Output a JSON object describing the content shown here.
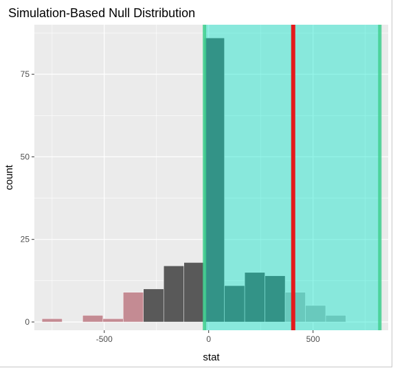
{
  "chart_data": {
    "type": "bar",
    "title": "Simulation-Based Null Distribution",
    "xlabel": "stat",
    "ylabel": "count",
    "xlim": [
      -835,
      860
    ],
    "ylim": [
      -2.5,
      90
    ],
    "x_ticks": [
      -500,
      0,
      500
    ],
    "x_tick_labels": [
      "-500",
      "0",
      "500"
    ],
    "y_ticks": [
      0,
      25,
      50,
      75
    ],
    "y_tick_labels": [
      "0",
      "25",
      "50",
      "75"
    ],
    "grid": true,
    "legend": "none",
    "bin_width": 97,
    "bins": [
      {
        "x": -750,
        "count": 1,
        "region": "extreme"
      },
      {
        "x": -555,
        "count": 2,
        "region": "extreme"
      },
      {
        "x": -458,
        "count": 1,
        "region": "extreme"
      },
      {
        "x": -361,
        "count": 9,
        "region": "extreme"
      },
      {
        "x": -264,
        "count": 10,
        "region": "null"
      },
      {
        "x": -167,
        "count": 17,
        "region": "null"
      },
      {
        "x": -70,
        "count": 18,
        "region": "null"
      },
      {
        "x": 27,
        "count": 86,
        "region": "null"
      },
      {
        "x": 124,
        "count": 11,
        "region": "null"
      },
      {
        "x": 221,
        "count": 15,
        "region": "null"
      },
      {
        "x": 318,
        "count": 14,
        "region": "null"
      },
      {
        "x": 415,
        "count": 9,
        "region": "extreme"
      },
      {
        "x": 512,
        "count": 5,
        "region": "extreme"
      },
      {
        "x": 609,
        "count": 2,
        "region": "extreme"
      }
    ],
    "shaded_region": {
      "from": -20,
      "to": 820,
      "fill": "#00e5c8",
      "edge": "#3fcf8e"
    },
    "observed_stat": 405,
    "colors": {
      "panel": "#ebebeb",
      "grid": "#ffffff",
      "bar_null": "#595959",
      "bar_extreme": "#c48b93",
      "bar_extreme_right": "#b5b5b5",
      "observed_line": "#e41a1c"
    }
  }
}
